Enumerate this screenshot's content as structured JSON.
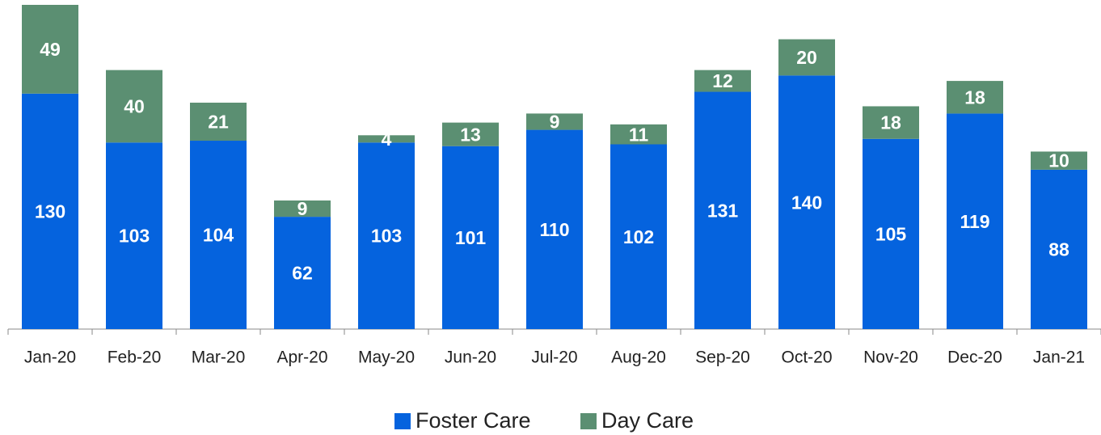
{
  "chart_data": {
    "type": "stacked_bar",
    "categories": [
      "Jan-20",
      "Feb-20",
      "Mar-20",
      "Apr-20",
      "May-20",
      "Jun-20",
      "Jul-20",
      "Aug-20",
      "Sep-20",
      "Oct-20",
      "Nov-20",
      "Dec-20",
      "Jan-21"
    ],
    "series": [
      {
        "name": "Foster Care",
        "color": "#0563de",
        "values": [
          130,
          103,
          104,
          62,
          103,
          101,
          110,
          102,
          131,
          140,
          105,
          119,
          88
        ]
      },
      {
        "name": "Day Care",
        "color": "#5b8f72",
        "values": [
          49,
          40,
          21,
          9,
          4,
          13,
          9,
          11,
          12,
          20,
          18,
          18,
          10
        ]
      }
    ]
  }
}
